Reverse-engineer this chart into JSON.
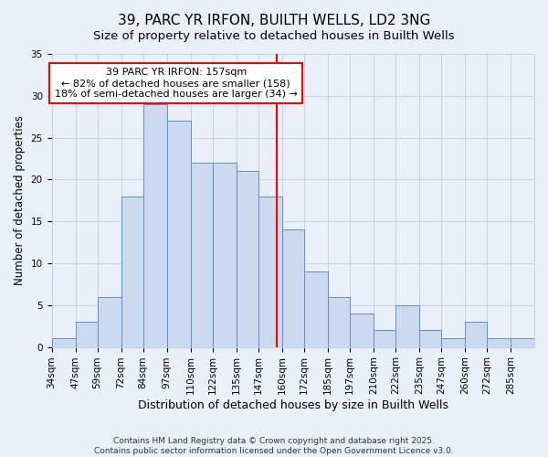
{
  "title_line1": "39, PARC YR IRFON, BUILTH WELLS, LD2 3NG",
  "title_line2": "Size of property relative to detached houses in Builth Wells",
  "xlabel": "Distribution of detached houses by size in Builth Wells",
  "ylabel": "Number of detached properties",
  "bin_edges": [
    34,
    47,
    59,
    72,
    84,
    97,
    110,
    122,
    135,
    147,
    160,
    172,
    185,
    197,
    210,
    222,
    235,
    247,
    260,
    272,
    285,
    298
  ],
  "counts": [
    1,
    3,
    6,
    18,
    29,
    27,
    22,
    22,
    21,
    18,
    14,
    9,
    6,
    4,
    2,
    5,
    2,
    1,
    3,
    1,
    1
  ],
  "bar_facecolor": "#ccdaf0",
  "bar_edgecolor": "#5b8fd4",
  "grid_color": "#c8d0e0",
  "background_color": "#eaf0fa",
  "vline_x": 157,
  "vline_color": "red",
  "annotation_text": "39 PARC YR IRFON: 157sqm\n← 82% of detached houses are smaller (158)\n18% of semi-detached houses are larger (34) →",
  "annotation_box_color": "white",
  "annotation_box_edgecolor": "red",
  "ylim": [
    0,
    35
  ],
  "yticks": [
    0,
    5,
    10,
    15,
    20,
    25,
    30,
    35
  ],
  "footer_text": "Contains HM Land Registry data © Crown copyright and database right 2025.\nContains public sector information licensed under the Open Government Licence v3.0.",
  "title_fontsize": 11,
  "subtitle_fontsize": 9.5,
  "tick_fontsize": 7.5,
  "xlabel_fontsize": 9,
  "ylabel_fontsize": 8.5,
  "annotation_fontsize": 8,
  "footer_fontsize": 6.5
}
